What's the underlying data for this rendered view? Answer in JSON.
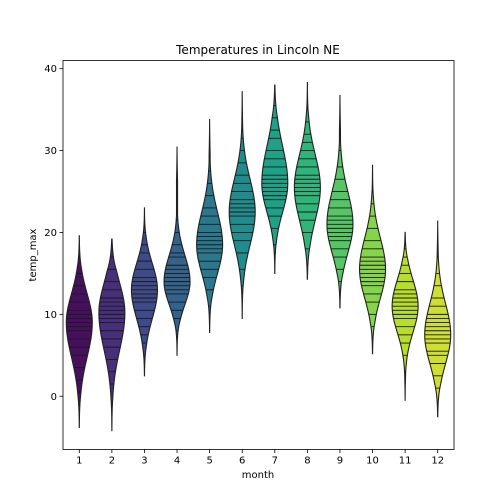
{
  "chart_data": {
    "type": "violin",
    "title": "Temperatures in Lincoln NE",
    "xlabel": "month",
    "ylabel": "temp_max",
    "categories": [
      "1",
      "2",
      "3",
      "4",
      "5",
      "6",
      "7",
      "8",
      "9",
      "10",
      "11",
      "12"
    ],
    "yticks": [
      "0",
      "10",
      "20",
      "30",
      "40"
    ],
    "ylim": [
      -6.5,
      41
    ],
    "inner": "stick",
    "grid": false,
    "colors": [
      "#46105e",
      "#472f7c",
      "#3e4a89",
      "#33638d",
      "#2a778e",
      "#228c8d",
      "#1fa187",
      "#30b47a",
      "#55c566",
      "#85d44b",
      "#b8dd2c",
      "#cede33"
    ],
    "series": [
      {
        "category": "1",
        "min": -3.8,
        "max": 19.6,
        "mode": 9.0,
        "sd_low": 4.2,
        "sd_high": 3.5,
        "samples": [
          -3.0,
          -1.5,
          0.5,
          2.0,
          3.5,
          5.0,
          6.0,
          7.0,
          8.0,
          8.5,
          9.0,
          9.5,
          10.0,
          10.5,
          11.5,
          12.5,
          13.5,
          15.0,
          17.0,
          19.0
        ]
      },
      {
        "category": "2",
        "min": -4.2,
        "max": 19.2,
        "mode": 10.2,
        "sd_low": 4.5,
        "sd_high": 3.6,
        "samples": [
          -3.5,
          -1.0,
          1.5,
          3.0,
          4.5,
          6.0,
          7.0,
          8.0,
          9.0,
          9.5,
          10.0,
          10.5,
          11.0,
          11.5,
          12.0,
          13.0,
          14.0,
          15.5,
          17.0,
          18.5
        ]
      },
      {
        "category": "3",
        "min": 2.5,
        "max": 23.0,
        "mode": 13.0,
        "sd_low": 3.5,
        "sd_high": 3.2,
        "samples": [
          3.5,
          5.0,
          6.5,
          7.5,
          8.5,
          9.5,
          10.5,
          11.5,
          12.0,
          12.5,
          13.0,
          13.5,
          14.0,
          14.5,
          15.5,
          16.5,
          17.5,
          18.5,
          20.0,
          22.0
        ]
      },
      {
        "category": "4",
        "min": 5.0,
        "max": 30.5,
        "mode": 14.0,
        "sd_low": 2.8,
        "sd_high": 3.2,
        "samples": [
          6.0,
          8.0,
          9.5,
          10.5,
          11.5,
          12.5,
          13.0,
          13.5,
          14.0,
          14.5,
          15.0,
          15.5,
          16.0,
          17.0,
          17.5,
          18.5,
          20.0,
          21.5,
          24.0,
          27.0
        ]
      },
      {
        "category": "5",
        "min": 7.8,
        "max": 33.8,
        "mode": 18.5,
        "sd_low": 3.5,
        "sd_high": 4.0,
        "samples": [
          9.0,
          11.0,
          13.0,
          14.5,
          15.5,
          16.5,
          17.5,
          18.0,
          18.5,
          19.0,
          19.5,
          20.0,
          21.0,
          22.0,
          23.0,
          24.5,
          26.0,
          27.5,
          29.5,
          32.0
        ]
      },
      {
        "category": "6",
        "min": 9.5,
        "max": 37.2,
        "mode": 22.5,
        "sd_low": 4.0,
        "sd_high": 4.0,
        "samples": [
          11.0,
          13.5,
          15.5,
          17.5,
          19.0,
          20.0,
          21.0,
          22.0,
          22.5,
          23.0,
          23.5,
          24.0,
          25.0,
          26.0,
          27.0,
          28.5,
          30.0,
          31.5,
          33.5,
          36.0
        ]
      },
      {
        "category": "7",
        "min": 15.0,
        "max": 38.0,
        "mode": 26.0,
        "sd_low": 3.5,
        "sd_high": 4.5,
        "samples": [
          16.5,
          18.5,
          20.5,
          22.0,
          23.0,
          24.0,
          24.5,
          25.0,
          25.5,
          26.0,
          26.5,
          27.0,
          28.0,
          29.0,
          30.0,
          31.5,
          32.5,
          34.0,
          35.5,
          37.0
        ]
      },
      {
        "category": "8",
        "min": 14.3,
        "max": 38.3,
        "mode": 25.5,
        "sd_low": 4.0,
        "sd_high": 4.0,
        "samples": [
          16.0,
          18.0,
          20.0,
          21.5,
          22.5,
          23.5,
          24.5,
          25.0,
          25.5,
          26.0,
          26.5,
          27.0,
          28.0,
          29.0,
          30.0,
          31.0,
          32.0,
          33.5,
          35.0,
          37.0
        ]
      },
      {
        "category": "9",
        "min": 10.8,
        "max": 36.8,
        "mode": 21.0,
        "sd_low": 3.5,
        "sd_high": 4.0,
        "samples": [
          12.0,
          14.0,
          15.5,
          17.0,
          18.0,
          19.0,
          19.5,
          20.0,
          20.5,
          21.0,
          21.5,
          22.0,
          23.0,
          24.0,
          25.0,
          26.5,
          28.0,
          30.0,
          32.0,
          35.0
        ]
      },
      {
        "category": "10",
        "min": 5.2,
        "max": 28.2,
        "mode": 15.5,
        "sd_low": 3.5,
        "sd_high": 3.8,
        "samples": [
          6.5,
          8.5,
          10.0,
          11.5,
          12.5,
          13.5,
          14.0,
          14.5,
          15.0,
          15.5,
          16.0,
          16.5,
          17.0,
          18.0,
          19.0,
          20.5,
          22.0,
          23.5,
          25.0,
          27.0
        ]
      },
      {
        "category": "11",
        "min": -0.5,
        "max": 20.0,
        "mode": 11.0,
        "sd_low": 3.2,
        "sd_high": 3.2,
        "samples": [
          0.5,
          3.0,
          5.0,
          6.5,
          7.5,
          8.5,
          9.5,
          10.0,
          10.5,
          11.0,
          11.5,
          12.0,
          12.5,
          13.0,
          14.0,
          15.0,
          16.0,
          17.0,
          18.0,
          19.5
        ]
      },
      {
        "category": "12",
        "min": -2.5,
        "max": 21.4,
        "mode": 7.5,
        "sd_low": 3.5,
        "sd_high": 3.8,
        "samples": [
          -1.5,
          1.0,
          2.5,
          4.0,
          5.0,
          5.5,
          6.5,
          7.0,
          7.5,
          8.0,
          8.5,
          9.0,
          9.5,
          10.0,
          11.0,
          12.0,
          13.5,
          15.0,
          17.0,
          20.0
        ]
      }
    ]
  }
}
